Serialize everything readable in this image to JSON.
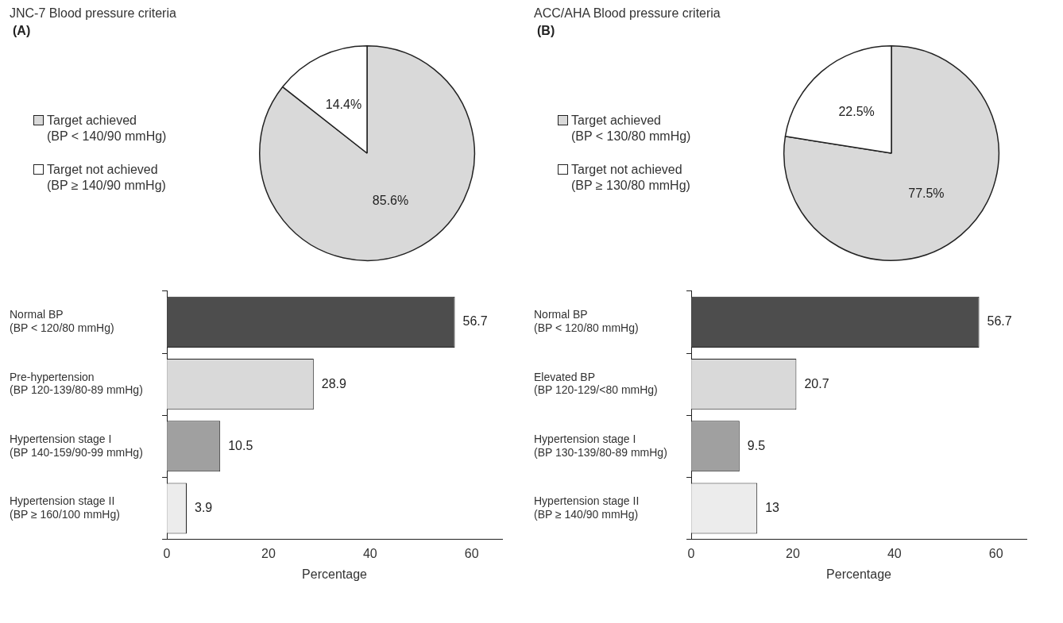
{
  "chart_data": [
    {
      "type": "pie",
      "title": "JNC-7 Blood pressure criteria",
      "subtitle": "(A)",
      "categories": [
        "Target achieved\n(BP < 140/90 mmHg)",
        "Target not achieved\n(BP ≥ 140/90 mmHg)"
      ],
      "values": [
        85.6,
        14.4
      ],
      "colors": [
        "#d9d9d9",
        "#ffffff"
      ],
      "value_labels": [
        "85.6%",
        "14.4%"
      ],
      "legend": "left"
    },
    {
      "type": "bar",
      "orientation": "horizontal",
      "categories": [
        "Normal BP\n(BP < 120/80 mmHg)",
        "Pre-hypertension\n(BP 120-139/80-89 mmHg)",
        "Hypertension stage I\n(BP 140-159/90-99 mmHg)",
        "Hypertension stage II\n(BP ≥ 160/100 mmHg)"
      ],
      "values": [
        56.7,
        28.9,
        10.5,
        3.9
      ],
      "colors": [
        "#4d4d4d",
        "#d9d9d9",
        "#a0a0a0",
        "#ececec"
      ],
      "data_labels": true,
      "xlim": [
        0,
        66
      ],
      "xticks": [
        0,
        20,
        40,
        60
      ],
      "xlabel": "Percentage"
    },
    {
      "type": "pie",
      "title": "ACC/AHA Blood pressure criteria",
      "subtitle": "(B)",
      "categories": [
        "Target achieved\n(BP < 130/80 mmHg)",
        "Target not achieved\n(BP ≥ 130/80 mmHg)"
      ],
      "values": [
        77.5,
        22.5
      ],
      "colors": [
        "#d9d9d9",
        "#ffffff"
      ],
      "value_labels": [
        "77.5%",
        "22.5%"
      ],
      "legend": "left"
    },
    {
      "type": "bar",
      "orientation": "horizontal",
      "categories": [
        "Normal BP\n(BP < 120/80 mmHg)",
        "Elevated BP\n(BP 120-129/<80 mmHg)",
        "Hypertension stage I\n(BP 130-139/80-89 mmHg)",
        "Hypertension stage II\n(BP ≥ 140/90 mmHg)"
      ],
      "values": [
        56.7,
        20.7,
        9.5,
        13
      ],
      "colors": [
        "#4d4d4d",
        "#d9d9d9",
        "#a0a0a0",
        "#ececec"
      ],
      "data_labels": true,
      "xlim": [
        0,
        66
      ],
      "xticks": [
        0,
        20,
        40,
        60
      ],
      "xlabel": "Percentage"
    }
  ]
}
